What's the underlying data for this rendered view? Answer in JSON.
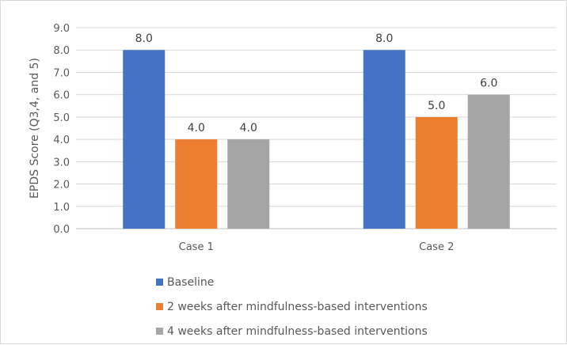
{
  "chart_data": {
    "type": "bar",
    "categories": [
      "Case 1",
      "Case 2"
    ],
    "series": [
      {
        "name": "Baseline",
        "values": [
          8.0,
          8.0
        ],
        "color": "#4472C4"
      },
      {
        "name": "2 weeks after mindfulness-based interventions",
        "values": [
          4.0,
          5.0
        ],
        "color": "#ED7D31"
      },
      {
        "name": "4 weeks after mindfulness-based interventions",
        "values": [
          4.0,
          6.0
        ],
        "color": "#A5A5A5"
      }
    ],
    "ylabel": "EPDS Score (Q3,4, and 5)",
    "xlabel": "",
    "ylim": [
      0,
      9
    ],
    "yticks": [
      "0.0",
      "1.0",
      "2.0",
      "3.0",
      "4.0",
      "5.0",
      "6.0",
      "7.0",
      "8.0",
      "9.0"
    ],
    "data_labels": [
      [
        "8.0",
        "8.0"
      ],
      [
        "4.0",
        "5.0"
      ],
      [
        "4.0",
        "6.0"
      ]
    ],
    "grid": true,
    "legend_position": "bottom"
  }
}
